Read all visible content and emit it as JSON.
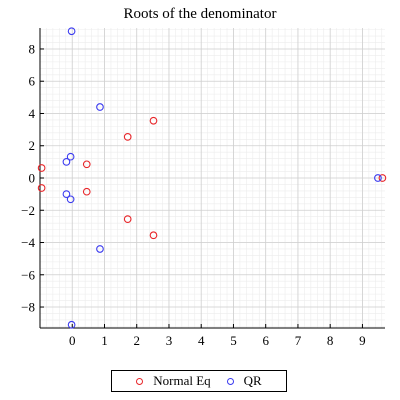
{
  "chart_data": {
    "type": "scatter",
    "title": "Roots of the denominator",
    "xlabel": "",
    "ylabel": "",
    "xlim": [
      -1.0,
      9.7
    ],
    "ylim": [
      -9.3,
      9.3
    ],
    "x_ticks": [
      0,
      1,
      2,
      3,
      4,
      5,
      6,
      7,
      8,
      9
    ],
    "y_ticks": [
      -8,
      -6,
      -4,
      -2,
      0,
      2,
      4,
      6,
      8
    ],
    "grid": true,
    "legend_position": "bottom",
    "marker": "open-circle",
    "series": [
      {
        "name": "Normal Eq",
        "color": "#e8262a",
        "points": [
          [
            -0.95,
            0.62
          ],
          [
            -0.95,
            -0.62
          ],
          [
            0.45,
            0.85
          ],
          [
            0.45,
            -0.85
          ],
          [
            1.72,
            2.55
          ],
          [
            1.72,
            -2.55
          ],
          [
            2.52,
            3.55
          ],
          [
            2.52,
            -3.55
          ],
          [
            9.62,
            0.0
          ]
        ]
      },
      {
        "name": "QR",
        "color": "#3b3bf0",
        "points": [
          [
            -0.02,
            9.1
          ],
          [
            -0.02,
            -9.1
          ],
          [
            0.86,
            4.4
          ],
          [
            0.86,
            -4.4
          ],
          [
            -0.18,
            1.0
          ],
          [
            -0.18,
            -1.0
          ],
          [
            -0.05,
            1.32
          ],
          [
            -0.05,
            -1.32
          ],
          [
            9.48,
            0.0
          ]
        ]
      }
    ]
  }
}
